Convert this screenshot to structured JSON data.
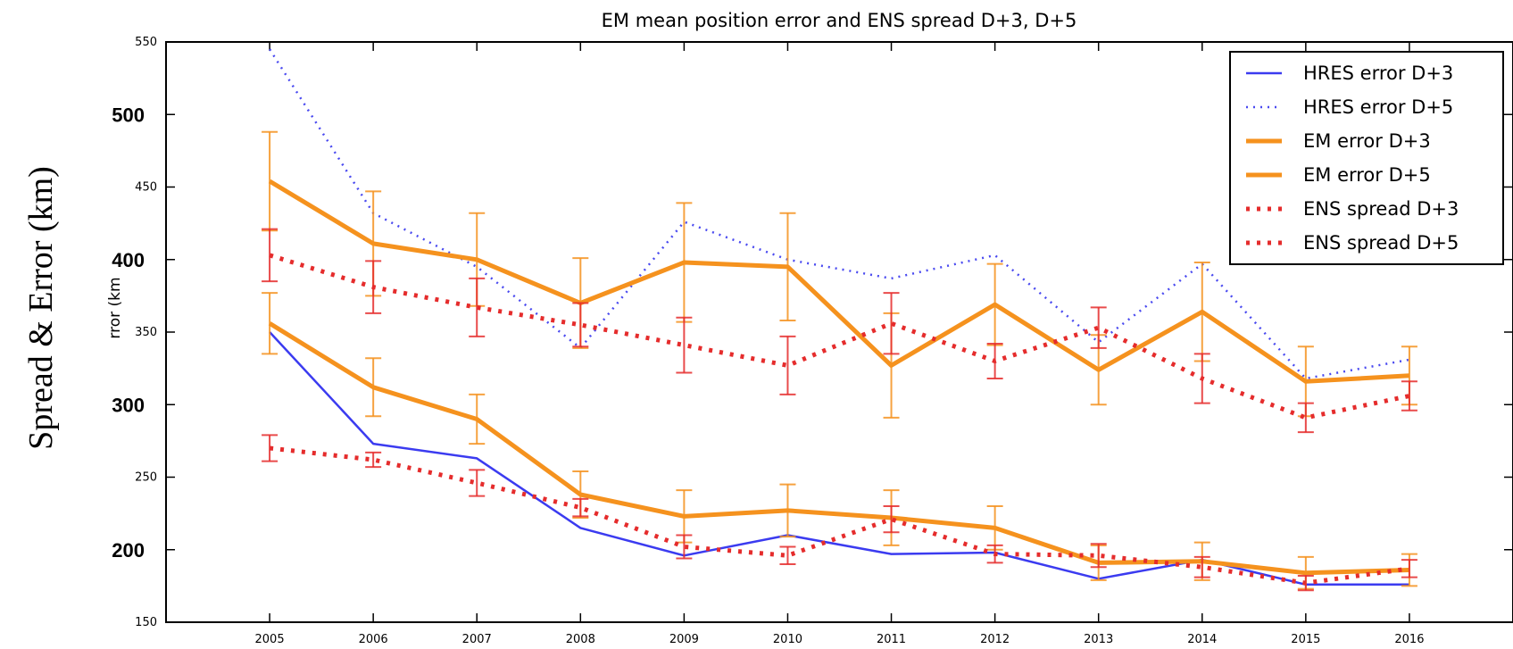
{
  "chart_data": {
    "type": "line",
    "title": "EM mean position error and ENS spread D+3, D+5",
    "ylabel": "Spread & Error (km)",
    "ylabel_partial": "rror (km",
    "xlabel": "",
    "categories": [
      "2005",
      "2006",
      "2007",
      "2008",
      "2009",
      "2010",
      "2011",
      "2012",
      "2013",
      "2014",
      "2015",
      "2016"
    ],
    "xlim": [
      2004,
      2017
    ],
    "ylim": [
      150,
      550
    ],
    "yticks": [
      {
        "value": 150,
        "label": "150",
        "style": "small"
      },
      {
        "value": 200,
        "label": "200",
        "style": "bold"
      },
      {
        "value": 250,
        "label": "250",
        "style": "small"
      },
      {
        "value": 300,
        "label": "300",
        "style": "bold"
      },
      {
        "value": 350,
        "label": "350",
        "style": "small"
      },
      {
        "value": 400,
        "label": "400",
        "style": "bold"
      },
      {
        "value": 450,
        "label": "450",
        "style": "small"
      },
      {
        "value": 500,
        "label": "500",
        "style": "bold"
      },
      {
        "value": 550,
        "label": "550",
        "style": "small"
      }
    ],
    "grid": false,
    "legend_position": "top-right",
    "series": [
      {
        "name": "HRES error D+3",
        "style": "solid",
        "color": "#3b3bf0",
        "width": 2.5,
        "values": [
          350,
          273,
          263,
          215,
          196,
          210,
          197,
          198,
          180,
          193,
          176,
          176
        ]
      },
      {
        "name": "HRES error D+5",
        "style": "dotted",
        "color": "#4a4af0",
        "width": 2.5,
        "values": [
          545,
          432,
          395,
          339,
          426,
          400,
          387,
          403,
          343,
          397,
          318,
          331
        ]
      },
      {
        "name": "EM error D+3",
        "style": "solid",
        "color": "#f5921e",
        "width": 5,
        "values": [
          356,
          312,
          290,
          238,
          223,
          227,
          222,
          215,
          191,
          192,
          184,
          186
        ],
        "errors": [
          21,
          20,
          17,
          16,
          18,
          18,
          19,
          15,
          12,
          13,
          11,
          11
        ]
      },
      {
        "name": "EM error D+5",
        "style": "solid",
        "color": "#f5921e",
        "width": 5,
        "values": [
          454,
          411,
          400,
          370,
          398,
          395,
          327,
          369,
          324,
          364,
          316,
          320
        ],
        "errors": [
          34,
          36,
          32,
          31,
          41,
          37,
          36,
          28,
          24,
          34,
          24,
          20
        ]
      },
      {
        "name": "ENS spread D+3",
        "style": "dotted",
        "color": "#e52c2c",
        "width": 5,
        "values": [
          270,
          262,
          246,
          229,
          202,
          196,
          221,
          197,
          196,
          188,
          177,
          187
        ],
        "errors": [
          9,
          5,
          9,
          6,
          8,
          6,
          9,
          6,
          8,
          7,
          5,
          6
        ]
      },
      {
        "name": "ENS spread D+5",
        "style": "dotted",
        "color": "#e52c2c",
        "width": 5,
        "values": [
          403,
          381,
          367,
          355,
          341,
          327,
          356,
          330,
          353,
          318,
          291,
          306
        ],
        "errors": [
          18,
          18,
          20,
          15,
          19,
          20,
          21,
          12,
          14,
          17,
          10,
          10
        ]
      }
    ]
  }
}
